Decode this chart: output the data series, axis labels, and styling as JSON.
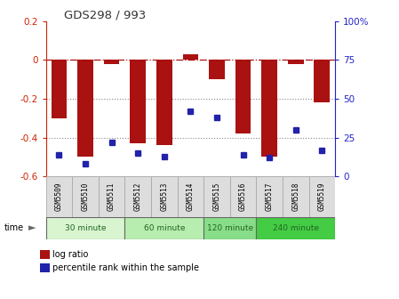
{
  "title": "GDS298 / 993",
  "samples": [
    "GSM5509",
    "GSM5510",
    "GSM5511",
    "GSM5512",
    "GSM5513",
    "GSM5514",
    "GSM5515",
    "GSM5516",
    "GSM5517",
    "GSM5518",
    "GSM5519"
  ],
  "log_ratio": [
    -0.3,
    -0.5,
    -0.02,
    -0.43,
    -0.44,
    0.03,
    -0.1,
    -0.38,
    -0.5,
    -0.02,
    -0.22
  ],
  "percentile": [
    14,
    8,
    22,
    15,
    13,
    42,
    38,
    14,
    12,
    30,
    17
  ],
  "bar_color": "#aa1111",
  "dot_color": "#2222aa",
  "groups": [
    {
      "label": "30 minute",
      "start": 0,
      "end": 3,
      "color": "#d8f5d0"
    },
    {
      "label": "60 minute",
      "start": 3,
      "end": 6,
      "color": "#b8edb0"
    },
    {
      "label": "120 minute",
      "start": 6,
      "end": 8,
      "color": "#88dd88"
    },
    {
      "label": "240 minute",
      "start": 8,
      "end": 11,
      "color": "#44cc44"
    }
  ],
  "ylim_left": [
    -0.6,
    0.2
  ],
  "ylim_right": [
    0,
    100
  ],
  "yticks_left": [
    -0.6,
    -0.4,
    -0.2,
    0.0,
    0.2
  ],
  "ytick_labels_left": [
    "-0.6",
    "-0.4",
    "-0.2",
    "0",
    "0.2"
  ],
  "yticks_right": [
    0,
    25,
    50,
    75,
    100
  ],
  "ytick_labels_right": [
    "0",
    "25",
    "50",
    "75",
    "100%"
  ],
  "hline_y": 0.0,
  "dotted_lines": [
    -0.2,
    -0.4
  ],
  "bg_color": "#ffffff",
  "plot_bg_color": "#ffffff",
  "legend_bar_label": "log ratio",
  "legend_dot_label": "percentile rank within the sample",
  "time_label": "time",
  "left_axis_color": "#cc2200",
  "right_axis_color": "#2222cc",
  "sample_box_color": "#dddddd",
  "sample_box_edge": "#aaaaaa"
}
